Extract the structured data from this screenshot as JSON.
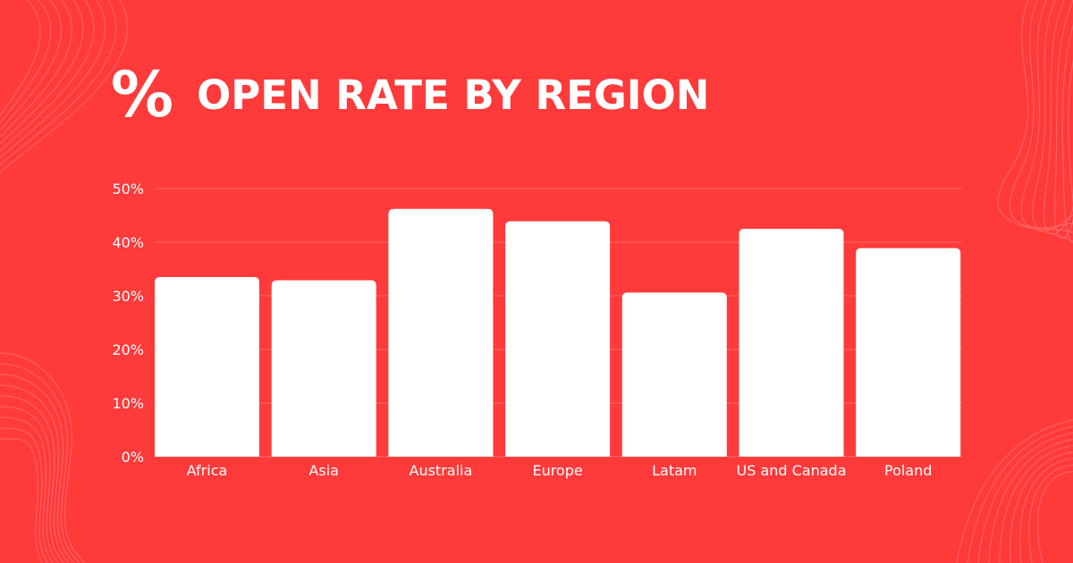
{
  "header": {
    "icon": "percent-icon",
    "icon_glyph": "%",
    "title": "OPEN RATE BY REGION"
  },
  "colors": {
    "background": "#fe3a3a",
    "bar": "#ffffff",
    "text": "#ffffff",
    "grid": "#ff6a6a"
  },
  "chart_data": {
    "type": "bar",
    "title": "OPEN RATE BY REGION",
    "xlabel": "",
    "ylabel": "",
    "categories": [
      "Africa",
      "Asia",
      "Australia",
      "Europe",
      "Latam",
      "US and Canada",
      "Poland"
    ],
    "values": [
      33.5,
      32.9,
      46.2,
      43.9,
      30.6,
      42.5,
      38.9
    ],
    "value_format": "percent",
    "ylim": [
      0,
      50
    ],
    "yticks": [
      "0%",
      "10%",
      "20%",
      "30%",
      "40%",
      "50%"
    ],
    "grid": true,
    "legend": "none"
  }
}
